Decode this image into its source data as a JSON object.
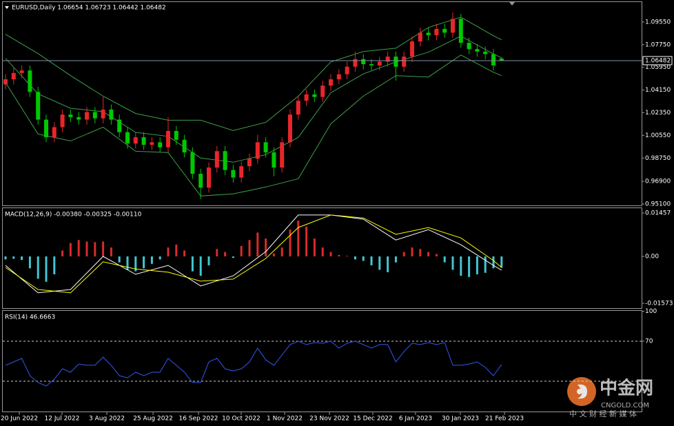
{
  "chart_data": [
    {
      "type": "candlestick",
      "title": "EURUSD,Daily 1.06654 1.06723 1.06442 1.06482",
      "open": [
        1.046,
        1.05,
        1.055,
        1.057,
        1.04,
        1.018,
        1.004,
        1.012,
        1.022,
        1.02,
        1.018,
        1.024,
        1.019,
        1.026,
        1.018,
        1.008,
        0.999,
        1.004,
        0.998,
        1.0,
        0.996,
        1.009,
        1.002,
        0.992,
        0.975,
        0.964,
        0.98,
        0.993,
        0.978,
        0.972,
        0.981,
        0.987,
        1.0,
        0.992,
        0.98,
        1.0,
        1.022,
        1.033,
        1.038,
        1.036,
        1.045,
        1.05,
        1.054,
        1.06,
        1.066,
        1.062,
        1.061,
        1.064,
        1.068,
        1.06,
        1.068,
        1.08,
        1.087,
        1.085,
        1.09,
        1.087,
        1.098,
        1.079,
        1.074,
        1.072,
        1.07,
        1.06654
      ],
      "high": [
        1.054,
        1.059,
        1.061,
        1.061,
        1.044,
        1.022,
        1.016,
        1.026,
        1.026,
        1.024,
        1.028,
        1.028,
        1.036,
        1.03,
        1.022,
        1.012,
        1.008,
        1.008,
        1.004,
        1.004,
        1.02,
        1.013,
        1.006,
        0.996,
        0.979,
        0.984,
        0.997,
        0.997,
        0.982,
        0.985,
        0.991,
        1.006,
        1.004,
        0.996,
        1.004,
        1.026,
        1.037,
        1.042,
        1.042,
        1.049,
        1.054,
        1.058,
        1.064,
        1.072,
        1.07,
        1.066,
        1.068,
        1.072,
        1.072,
        1.072,
        1.084,
        1.091,
        1.091,
        1.094,
        1.094,
        1.103,
        1.102,
        1.083,
        1.078,
        1.076,
        1.074,
        1.06723
      ],
      "low": [
        1.042,
        1.046,
        1.051,
        1.036,
        1.014,
        1.0,
        1.0,
        1.008,
        1.016,
        1.014,
        1.014,
        1.015,
        1.015,
        1.014,
        1.004,
        0.995,
        0.995,
        0.994,
        0.994,
        0.992,
        0.992,
        0.998,
        0.988,
        0.971,
        0.955,
        0.96,
        0.976,
        0.974,
        0.968,
        0.968,
        0.977,
        0.983,
        0.988,
        0.973,
        0.976,
        0.996,
        1.018,
        1.029,
        1.032,
        1.032,
        1.041,
        1.046,
        1.05,
        1.056,
        1.058,
        1.057,
        1.057,
        1.06,
        1.049,
        1.056,
        1.064,
        1.076,
        1.081,
        1.081,
        1.083,
        1.083,
        1.075,
        1.07,
        1.068,
        1.066,
        1.057,
        1.06442
      ],
      "close": [
        1.05,
        1.055,
        1.057,
        1.04,
        1.018,
        1.004,
        1.012,
        1.022,
        1.02,
        1.018,
        1.024,
        1.019,
        1.026,
        1.018,
        1.008,
        0.999,
        1.004,
        0.998,
        1.0,
        0.996,
        1.009,
        1.002,
        0.992,
        0.975,
        0.964,
        0.98,
        0.993,
        0.978,
        0.972,
        0.981,
        0.987,
        1.0,
        0.992,
        0.98,
        1.0,
        1.022,
        1.033,
        1.038,
        1.036,
        1.045,
        1.05,
        1.054,
        1.06,
        1.066,
        1.062,
        1.061,
        1.064,
        1.068,
        1.06,
        1.068,
        1.08,
        1.087,
        1.085,
        1.09,
        1.087,
        1.098,
        1.079,
        1.074,
        1.072,
        1.07,
        1.061,
        1.06482
      ],
      "up_color": "#e8262a",
      "down_color": "#00c800",
      "ylim": [
        0.9499,
        1.1102
      ],
      "yticks": [
        {
          "value": 1.0955,
          "label": "1.09550"
        },
        {
          "value": 1.0775,
          "label": "1.07750"
        },
        {
          "value": 1.0595,
          "label": "1.05950"
        },
        {
          "value": 1.0415,
          "label": "1.04150"
        },
        {
          "value": 1.0235,
          "label": "1.02350"
        },
        {
          "value": 1.0055,
          "label": "1.00550"
        },
        {
          "value": 0.9875,
          "label": "0.98750"
        },
        {
          "value": 0.969,
          "label": "0.96900"
        },
        {
          "value": 0.951,
          "label": "0.95100"
        }
      ],
      "xticks": [
        {
          "value": 1.7,
          "label": "20 Jun 2022"
        },
        {
          "value": 6.95,
          "label": "12 Jul 2022"
        },
        {
          "value": 12.46,
          "label": "3 Aug 2022"
        },
        {
          "value": 18.14,
          "label": "25 Aug 2022"
        },
        {
          "value": 23.73,
          "label": "16 Sep 2022"
        },
        {
          "value": 28.98,
          "label": "10 Oct 2022"
        },
        {
          "value": 34.32,
          "label": "1 Nov 2022"
        },
        {
          "value": 39.83,
          "label": "23 Nov 2022"
        },
        {
          "value": 45.17,
          "label": "15 Dec 2022"
        },
        {
          "value": 50.42,
          "label": "6 Jan 2023"
        },
        {
          "value": 55.93,
          "label": "30 Jan 2023"
        },
        {
          "value": 61.36,
          "label": "21 Feb 2023"
        }
      ],
      "bands": {
        "color": "#3f9f4a",
        "x": [
          0,
          4,
          8,
          12,
          16,
          20,
          24,
          28,
          32,
          36,
          40,
          44,
          48,
          52,
          56,
          60,
          61
        ],
        "upper": [
          1.0857,
          1.0704,
          1.0529,
          1.0366,
          1.0229,
          1.0175,
          1.0175,
          1.0093,
          1.0158,
          1.0366,
          1.0638,
          1.072,
          1.0747,
          1.0911,
          1.0993,
          1.0846,
          1.0813
        ],
        "middle": [
          1.0666,
          1.0385,
          1.027,
          1.0243,
          1.0079,
          1.0047,
          0.9875,
          0.9842,
          0.9902,
          1.0039,
          1.0393,
          1.0543,
          1.0638,
          1.0715,
          1.0843,
          1.0701,
          1.0671
        ],
        "lower": [
          1.0475,
          1.0065,
          1.0011,
          1.012,
          0.9929,
          0.9918,
          0.9574,
          0.9591,
          0.9645,
          0.9711,
          1.0147,
          1.0366,
          1.0529,
          1.0518,
          1.0693,
          1.0556,
          1.0529
        ]
      },
      "price_line_color": "#7f93a8"
    },
    {
      "type": "macd",
      "title": "MACD(12,26,9) -0.00380 -0.00325 -0.00110",
      "values": [
        -0.001,
        -0.0008,
        -0.0012,
        -0.004,
        -0.0075,
        -0.0085,
        -0.006,
        0.002,
        0.0045,
        0.0055,
        0.005,
        0.0048,
        0.005,
        0.003,
        -0.002,
        -0.0045,
        -0.005,
        -0.004,
        -0.0025,
        -0.001,
        0.003,
        0.004,
        0.002,
        -0.005,
        -0.0065,
        -0.003,
        0.0025,
        0.0015,
        -0.0005,
        0.0035,
        0.0055,
        0.008,
        0.006,
        0.001,
        0.003,
        0.009,
        0.012,
        0.01,
        0.006,
        0.003,
        0.0015,
        0.0005,
        0.0002,
        -0.001,
        -0.0015,
        -0.003,
        -0.0045,
        -0.0053,
        -0.002,
        0.0015,
        0.003,
        0.0025,
        0.0015,
        0.0008,
        -0.002,
        -0.0045,
        -0.0065,
        -0.0069,
        -0.006,
        -0.0055,
        -0.004,
        -0.0038
      ],
      "up_color": "#d92b2b",
      "down_color": "#3fc7d4",
      "series": [
        {
          "color": "#ffffff",
          "x": [
            0,
            4,
            8,
            12,
            16,
            20,
            24,
            28,
            32,
            36,
            40,
            44,
            48,
            52,
            56,
            60,
            61
          ],
          "values": [
            -0.003,
            -0.0122,
            -0.0111,
            0.0,
            -0.006,
            -0.003,
            -0.0099,
            -0.0065,
            0.0016,
            0.0139,
            0.0139,
            0.0125,
            0.0055,
            0.009,
            0.0039,
            -0.003,
            -0.0046
          ]
        },
        {
          "color": "#ffff00",
          "x": [
            0,
            4,
            8,
            12,
            16,
            20,
            24,
            28,
            32,
            36,
            40,
            44,
            48,
            52,
            56,
            60,
            61
          ],
          "values": [
            -0.0037,
            -0.0111,
            -0.0122,
            -0.0018,
            -0.0042,
            -0.0053,
            -0.0083,
            -0.0076,
            -0.0007,
            0.0097,
            0.0139,
            0.0129,
            0.0074,
            0.0097,
            0.0062,
            -0.0014,
            -0.0037
          ]
        }
      ],
      "ylim": [
        -0.01758,
        0.01619
      ],
      "yticks": [
        0.01457,
        {
          "value": 0,
          "label": "0.00"
        },
        -0.01573
      ]
    },
    {
      "type": "line",
      "title": "RSI(14) 46.6663",
      "values": [
        45.9,
        49.3,
        52.8,
        35.5,
        28.6,
        25.2,
        32.1,
        42.4,
        39.0,
        47.2,
        45.9,
        45.9,
        54.1,
        45.9,
        35.5,
        33.4,
        39.0,
        35.5,
        39.0,
        39.0,
        52.8,
        45.9,
        39.0,
        28.6,
        28.6,
        49.3,
        52.8,
        42.4,
        40.3,
        42.4,
        49.3,
        63.1,
        51.4,
        45.9,
        56.2,
        66.6,
        70.0,
        66.6,
        68.6,
        67.9,
        70.0,
        63.1,
        67.9,
        70.0,
        66.6,
        63.1,
        66.6,
        66.6,
        49.3,
        59.7,
        67.9,
        66.6,
        68.6,
        66.6,
        68.6,
        45.9,
        45.9,
        47.2,
        49.3,
        43.8,
        35.5,
        46.7
      ],
      "color": "#3558ee",
      "ylim": [
        0,
        100
      ],
      "yticks": [
        100,
        70
      ],
      "levels": [
        70,
        30
      ]
    }
  ],
  "watermark": {
    "brand": "中金网",
    "site": "CNGOLD.COM",
    "slogan": "中 文 财 经 新 媒 体"
  }
}
